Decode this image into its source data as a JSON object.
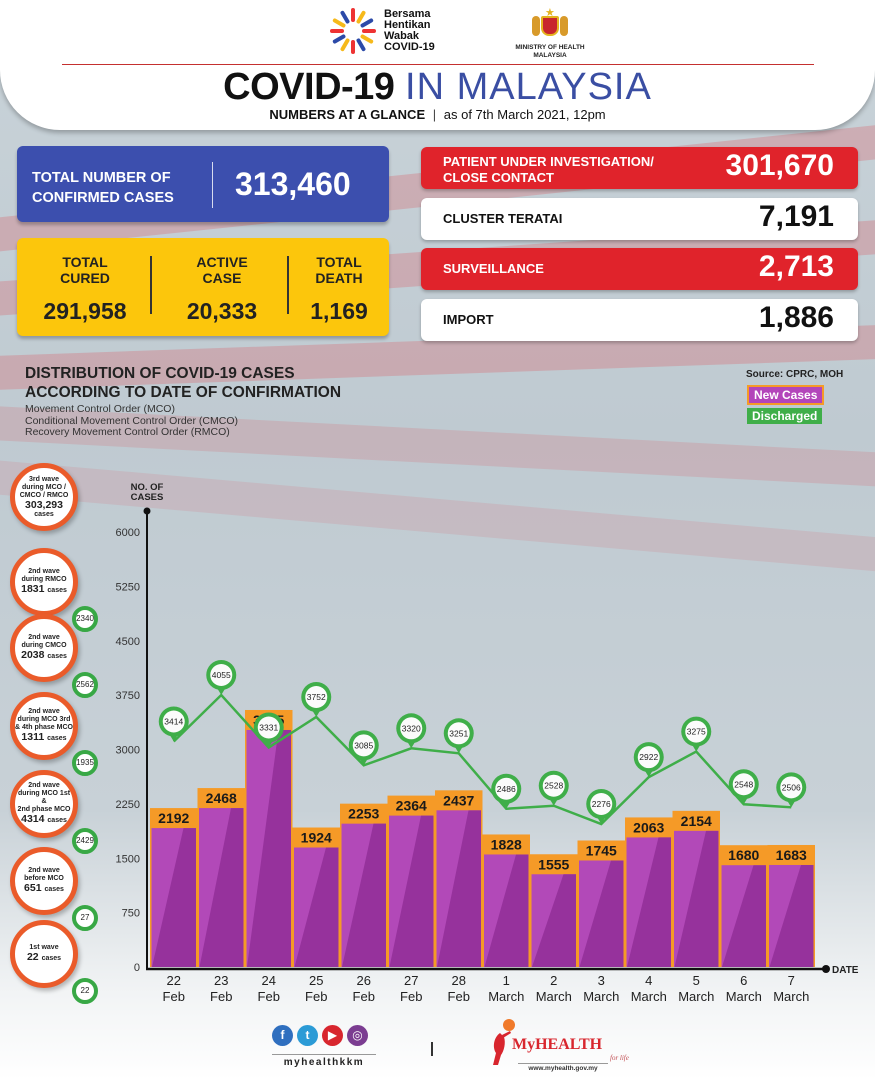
{
  "header": {
    "campaign_logo_text": [
      "Bersama",
      "Hentikan",
      "Wabak",
      "COVID-19"
    ],
    "ministry_text": [
      "MINISTRY OF HEALTH",
      "MALAYSIA"
    ],
    "title_bold": "COVID-19",
    "title_light": "IN MALAYSIA",
    "subtitle_bold": "NUMBERS AT A GLANCE",
    "subtitle_sep": "|",
    "subtitle_date": "as of 7th March 2021, 12pm"
  },
  "summary": {
    "confirmed": {
      "label_line1": "TOTAL NUMBER OF",
      "label_line2": "CONFIRMED CASES",
      "value": "313,460"
    },
    "cured": {
      "label_line1": "TOTAL",
      "label_line2": "CURED",
      "value": "291,958"
    },
    "active": {
      "label_line1": "ACTIVE",
      "label_line2": "CASE",
      "value": "20,333"
    },
    "death": {
      "label_line1": "TOTAL",
      "label_line2": "DEATH",
      "value": "1,169"
    }
  },
  "categories": [
    {
      "label_line1": "PATIENT UNDER INVESTIGATION/",
      "label_line2": "CLOSE CONTACT",
      "value": "301,670",
      "style": "red"
    },
    {
      "label_line1": "CLUSTER TERATAI",
      "label_line2": "",
      "value": "7,191",
      "style": "white"
    },
    {
      "label_line1": "SURVEILLANCE",
      "label_line2": "",
      "value": "2,713",
      "style": "red"
    },
    {
      "label_line1": "IMPORT",
      "label_line2": "",
      "value": "1,886",
      "style": "white"
    }
  ],
  "distribution": {
    "title_line1": "DISTRIBUTION OF COVID-19 CASES",
    "title_line2": "ACCORDING TO DATE OF CONFIRMATION",
    "notes": [
      "Movement Control Order (MCO)",
      "Conditional Movement Control Order (CMCO)",
      "Recovery Movement Control Order (RMCO)"
    ],
    "source": "Source: CPRC, MOH"
  },
  "waves": [
    {
      "line1": "3rd wave",
      "line2": "during MCO /",
      "line3": "CMCO / RMCO",
      "cases": "303,293",
      "cases_suffix": "cases",
      "discharged": ""
    },
    {
      "line1": "2nd wave",
      "line2": "during RMCO",
      "line3": "",
      "cases": "1831",
      "cases_suffix": "cases",
      "discharged": "2340"
    },
    {
      "line1": "2nd wave",
      "line2": "during CMCO",
      "line3": "",
      "cases": "2038",
      "cases_suffix": "cases",
      "discharged": "2562"
    },
    {
      "line1": "2nd wave",
      "line2": "during MCO 3rd",
      "line3": "& 4th phase MCO",
      "cases": "1311",
      "cases_suffix": "cases",
      "discharged": "1935"
    },
    {
      "line1": "2nd wave",
      "line2": "during MCO 1st &",
      "line3": "2nd phase MCO",
      "cases": "4314",
      "cases_suffix": "cases",
      "discharged": "2429"
    },
    {
      "line1": "2nd wave",
      "line2": "before MCO",
      "line3": "",
      "cases": "651",
      "cases_suffix": "cases",
      "discharged": "27"
    },
    {
      "line1": "1st wave",
      "line2": "",
      "line3": "",
      "cases": "22",
      "cases_suffix": "cases",
      "discharged": "22"
    }
  ],
  "colors": {
    "bar_light": "#b249b8",
    "bar_dark": "#96329c",
    "bar_cap": "#f59a27",
    "discharged": "#3fae49",
    "confirmed_blue": "#3c4fae",
    "alert_red": "#e0232b",
    "summary_yellow": "#fcc60c",
    "wave_orange": "#ea5b2a"
  },
  "chart_data": {
    "type": "bar",
    "title": "Distribution of COVID-19 cases according to date of confirmation",
    "ylabel": "NO. OF CASES",
    "xlabel": "DATE",
    "ylim": [
      0,
      6000
    ],
    "yticks": [
      0,
      750,
      1500,
      2250,
      3000,
      3750,
      4500,
      5250,
      6000
    ],
    "grid": false,
    "legend": "top-right",
    "legend_entries": [
      "New Cases",
      "Discharged"
    ],
    "categories": [
      [
        "22",
        "Feb"
      ],
      [
        "23",
        "Feb"
      ],
      [
        "24",
        "Feb"
      ],
      [
        "25",
        "Feb"
      ],
      [
        "26",
        "Feb"
      ],
      [
        "27",
        "Feb"
      ],
      [
        "28",
        "Feb"
      ],
      [
        "1",
        "March"
      ],
      [
        "2",
        "March"
      ],
      [
        "3",
        "March"
      ],
      [
        "4",
        "March"
      ],
      [
        "5",
        "March"
      ],
      [
        "6",
        "March"
      ],
      [
        "7",
        "March"
      ]
    ],
    "series": [
      {
        "name": "New Cases",
        "type": "bar",
        "values": [
          2192,
          2468,
          3545,
          1924,
          2253,
          2364,
          2437,
          1828,
          1555,
          1745,
          2063,
          2154,
          1680,
          1683
        ]
      },
      {
        "name": "Discharged",
        "type": "line",
        "values": [
          3414,
          4055,
          3331,
          3752,
          3085,
          3320,
          3251,
          2486,
          2528,
          2276,
          2922,
          3275,
          2548,
          2506
        ]
      }
    ]
  },
  "footer": {
    "social_icons": [
      "facebook-icon",
      "twitter-icon",
      "youtube-icon",
      "instagram-icon"
    ],
    "social_handle": "myhealthkkm",
    "separator": "|",
    "brand_my": "My",
    "brand_health": "HEALTH",
    "brand_tagline": "for life",
    "url": "www.myhealth.gov.my"
  }
}
